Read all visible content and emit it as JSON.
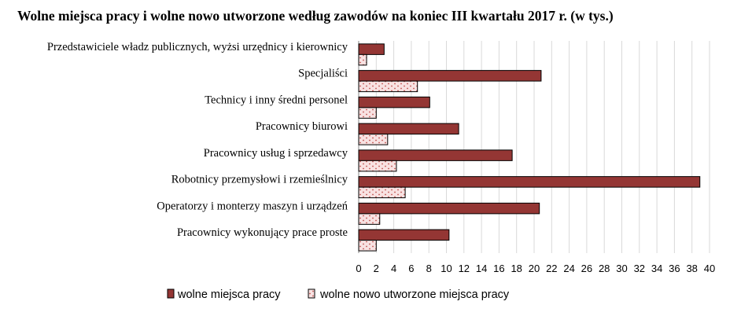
{
  "chart_data": {
    "type": "bar",
    "orientation": "horizontal",
    "title": "Wolne miejsca pracy i wolne nowo utworzone według zawodów na koniec III kwartału 2017 r. (w tys.)",
    "categories": [
      "Przedstawiciele władz publicznych, wyżsi urzędnicy i kierownicy",
      "Specjaliści",
      "Technicy i inny średni personel",
      "Pracownicy biurowi",
      "Pracownicy usług i sprzedawcy",
      "Robotnicy przemysłowi i rzemieślnicy",
      "Operatorzy i monterzy maszyn i urządzeń",
      "Pracownicy wykonujący prace proste"
    ],
    "series": [
      {
        "name": "wolne miejsca pracy",
        "color": "#943634",
        "values": [
          2.9,
          20.8,
          8.1,
          11.4,
          17.5,
          38.9,
          20.6,
          10.3
        ]
      },
      {
        "name": "wolne nowo utworzone miejsca pracy",
        "color": "#f2dcdb",
        "pattern": "dotted",
        "values": [
          0.9,
          6.7,
          2.0,
          3.3,
          4.3,
          5.3,
          2.4,
          2.0
        ]
      }
    ],
    "xlim": [
      0,
      40
    ],
    "xticks": [
      "0",
      "2",
      "4",
      "6",
      "8",
      "10",
      "12",
      "14",
      "16",
      "18",
      "20",
      "22",
      "24",
      "26",
      "28",
      "30",
      "32",
      "34",
      "36",
      "38",
      "40"
    ],
    "grid": "vertical",
    "legend": "bottom"
  }
}
